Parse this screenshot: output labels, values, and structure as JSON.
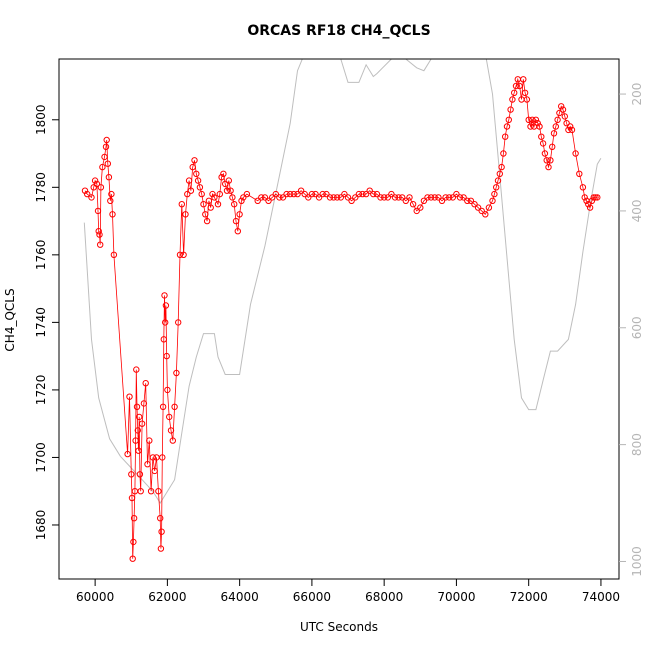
{
  "chart_data": {
    "type": "scatter",
    "title": "ORCAS RF18 CH4_QCLS",
    "xlabel": "UTC Seconds",
    "ylabel": "CH4_QCLS",
    "xlim": [
      59000,
      74500
    ],
    "ylim": [
      1664,
      1818
    ],
    "x_ticks": [
      60000,
      62000,
      64000,
      66000,
      68000,
      70000,
      72000,
      74000
    ],
    "y_ticks": [
      1680,
      1700,
      1720,
      1740,
      1760,
      1780,
      1800
    ],
    "y2_ticks": [
      200,
      400,
      600,
      800,
      1000
    ],
    "y2lim": [
      1030,
      140
    ],
    "grid": false,
    "legend": "none",
    "colors": {
      "ch4": "#ff0000",
      "pressure": "#bebebe",
      "axes": "#000000",
      "y2_ticks": "#b5b5b5"
    },
    "series": [
      {
        "role": "primary",
        "marker": "open-circle",
        "points": [
          [
            59720,
            1779
          ],
          [
            59780,
            1778
          ],
          [
            59900,
            1777
          ],
          [
            59960,
            1780
          ],
          [
            60000,
            1782
          ],
          [
            60050,
            1781
          ],
          [
            60080,
            1773
          ],
          [
            60100,
            1767
          ],
          [
            60120,
            1766
          ],
          [
            60140,
            1763
          ],
          [
            60160,
            1780
          ],
          [
            60200,
            1786
          ],
          [
            60260,
            1789
          ],
          [
            60300,
            1792
          ],
          [
            60320,
            1794
          ],
          [
            60350,
            1787
          ],
          [
            60380,
            1783
          ],
          [
            60420,
            1776
          ],
          [
            60450,
            1778
          ],
          [
            60480,
            1772
          ],
          [
            60520,
            1760
          ],
          [
            60900,
            1701
          ],
          [
            60950,
            1718
          ],
          [
            61000,
            1695
          ],
          [
            61020,
            1688
          ],
          [
            61040,
            1670
          ],
          [
            61060,
            1675
          ],
          [
            61080,
            1682
          ],
          [
            61100,
            1690
          ],
          [
            61120,
            1705
          ],
          [
            61140,
            1726
          ],
          [
            61160,
            1715
          ],
          [
            61180,
            1708
          ],
          [
            61200,
            1702
          ],
          [
            61220,
            1712
          ],
          [
            61240,
            1695
          ],
          [
            61260,
            1690
          ],
          [
            61300,
            1710
          ],
          [
            61350,
            1716
          ],
          [
            61400,
            1722
          ],
          [
            61450,
            1698
          ],
          [
            61500,
            1705
          ],
          [
            61550,
            1690
          ],
          [
            61600,
            1700
          ],
          [
            61650,
            1696
          ],
          [
            61700,
            1700
          ],
          [
            61750,
            1690
          ],
          [
            61800,
            1682
          ],
          [
            61820,
            1673
          ],
          [
            61840,
            1678
          ],
          [
            61860,
            1700
          ],
          [
            61880,
            1715
          ],
          [
            61900,
            1735
          ],
          [
            61920,
            1748
          ],
          [
            61940,
            1740
          ],
          [
            61960,
            1745
          ],
          [
            61980,
            1730
          ],
          [
            62000,
            1720
          ],
          [
            62050,
            1712
          ],
          [
            62100,
            1708
          ],
          [
            62150,
            1705
          ],
          [
            62200,
            1715
          ],
          [
            62250,
            1725
          ],
          [
            62300,
            1740
          ],
          [
            62350,
            1760
          ],
          [
            62400,
            1775
          ],
          [
            62450,
            1760
          ],
          [
            62500,
            1772
          ],
          [
            62550,
            1778
          ],
          [
            62600,
            1782
          ],
          [
            62650,
            1779
          ],
          [
            62700,
            1786
          ],
          [
            62750,
            1788
          ],
          [
            62800,
            1784
          ],
          [
            62850,
            1782
          ],
          [
            62900,
            1780
          ],
          [
            62950,
            1778
          ],
          [
            63000,
            1775
          ],
          [
            63050,
            1772
          ],
          [
            63100,
            1770
          ],
          [
            63150,
            1776
          ],
          [
            63200,
            1774
          ],
          [
            63250,
            1778
          ],
          [
            63300,
            1777
          ],
          [
            63400,
            1775
          ],
          [
            63450,
            1778
          ],
          [
            63500,
            1783
          ],
          [
            63550,
            1784
          ],
          [
            63600,
            1781
          ],
          [
            63650,
            1779
          ],
          [
            63700,
            1782
          ],
          [
            63750,
            1779
          ],
          [
            63800,
            1777
          ],
          [
            63850,
            1775
          ],
          [
            63900,
            1770
          ],
          [
            63950,
            1767
          ],
          [
            64000,
            1772
          ],
          [
            64050,
            1776
          ],
          [
            64100,
            1777
          ],
          [
            64200,
            1778
          ],
          [
            64500,
            1776
          ],
          [
            64600,
            1777
          ],
          [
            64700,
            1777
          ],
          [
            64800,
            1776
          ],
          [
            64900,
            1777
          ],
          [
            65000,
            1778
          ],
          [
            65100,
            1777
          ],
          [
            65200,
            1777
          ],
          [
            65300,
            1778
          ],
          [
            65400,
            1778
          ],
          [
            65500,
            1778
          ],
          [
            65600,
            1778
          ],
          [
            65700,
            1779
          ],
          [
            65800,
            1778
          ],
          [
            65900,
            1777
          ],
          [
            66000,
            1778
          ],
          [
            66100,
            1778
          ],
          [
            66200,
            1777
          ],
          [
            66300,
            1778
          ],
          [
            66400,
            1778
          ],
          [
            66500,
            1777
          ],
          [
            66600,
            1777
          ],
          [
            66700,
            1777
          ],
          [
            66800,
            1777
          ],
          [
            66900,
            1778
          ],
          [
            67000,
            1777
          ],
          [
            67100,
            1776
          ],
          [
            67200,
            1777
          ],
          [
            67300,
            1778
          ],
          [
            67400,
            1778
          ],
          [
            67500,
            1778
          ],
          [
            67600,
            1779
          ],
          [
            67700,
            1778
          ],
          [
            67800,
            1778
          ],
          [
            67900,
            1777
          ],
          [
            68000,
            1777
          ],
          [
            68100,
            1777
          ],
          [
            68200,
            1778
          ],
          [
            68300,
            1777
          ],
          [
            68400,
            1777
          ],
          [
            68500,
            1777
          ],
          [
            68600,
            1776
          ],
          [
            68700,
            1777
          ],
          [
            68800,
            1775
          ],
          [
            68900,
            1773
          ],
          [
            69000,
            1774
          ],
          [
            69100,
            1776
          ],
          [
            69200,
            1777
          ],
          [
            69300,
            1777
          ],
          [
            69400,
            1777
          ],
          [
            69500,
            1777
          ],
          [
            69600,
            1776
          ],
          [
            69700,
            1777
          ],
          [
            69800,
            1777
          ],
          [
            69900,
            1777
          ],
          [
            70000,
            1778
          ],
          [
            70100,
            1777
          ],
          [
            70200,
            1777
          ],
          [
            70300,
            1776
          ],
          [
            70400,
            1776
          ],
          [
            70500,
            1775
          ],
          [
            70600,
            1774
          ],
          [
            70700,
            1773
          ],
          [
            70800,
            1772
          ],
          [
            70900,
            1774
          ],
          [
            71000,
            1776
          ],
          [
            71050,
            1778
          ],
          [
            71100,
            1780
          ],
          [
            71150,
            1782
          ],
          [
            71200,
            1784
          ],
          [
            71250,
            1786
          ],
          [
            71300,
            1790
          ],
          [
            71350,
            1795
          ],
          [
            71400,
            1798
          ],
          [
            71450,
            1800
          ],
          [
            71500,
            1803
          ],
          [
            71550,
            1806
          ],
          [
            71600,
            1808
          ],
          [
            71650,
            1810
          ],
          [
            71700,
            1812
          ],
          [
            71750,
            1810
          ],
          [
            71800,
            1806
          ],
          [
            71850,
            1812
          ],
          [
            71900,
            1808
          ],
          [
            71950,
            1806
          ],
          [
            72000,
            1800
          ],
          [
            72050,
            1798
          ],
          [
            72100,
            1800
          ],
          [
            72150,
            1798
          ],
          [
            72200,
            1800
          ],
          [
            72250,
            1799
          ],
          [
            72300,
            1798
          ],
          [
            72350,
            1795
          ],
          [
            72400,
            1793
          ],
          [
            72450,
            1790
          ],
          [
            72500,
            1788
          ],
          [
            72550,
            1786
          ],
          [
            72600,
            1788
          ],
          [
            72650,
            1792
          ],
          [
            72700,
            1796
          ],
          [
            72750,
            1798
          ],
          [
            72800,
            1800
          ],
          [
            72850,
            1802
          ],
          [
            72900,
            1804
          ],
          [
            72950,
            1803
          ],
          [
            73000,
            1801
          ],
          [
            73050,
            1799
          ],
          [
            73100,
            1797
          ],
          [
            73150,
            1798
          ],
          [
            73200,
            1797
          ],
          [
            73300,
            1790
          ],
          [
            73400,
            1784
          ],
          [
            73500,
            1780
          ],
          [
            73550,
            1777
          ],
          [
            73600,
            1776
          ],
          [
            73650,
            1775
          ],
          [
            73700,
            1774
          ],
          [
            73750,
            1776
          ],
          [
            73800,
            1777
          ],
          [
            73850,
            1777
          ],
          [
            73900,
            1777
          ]
        ]
      },
      {
        "role": "secondary (right axis)",
        "marker": "line",
        "points": [
          [
            59700,
            420
          ],
          [
            59900,
            620
          ],
          [
            60100,
            720
          ],
          [
            60400,
            790
          ],
          [
            60700,
            820
          ],
          [
            61000,
            840
          ],
          [
            61300,
            860
          ],
          [
            61600,
            880
          ],
          [
            61800,
            900
          ],
          [
            62000,
            880
          ],
          [
            62200,
            860
          ],
          [
            62400,
            780
          ],
          [
            62600,
            700
          ],
          [
            62800,
            650
          ],
          [
            63000,
            610
          ],
          [
            63300,
            610
          ],
          [
            63400,
            650
          ],
          [
            63600,
            680
          ],
          [
            64000,
            680
          ],
          [
            64300,
            560
          ],
          [
            64700,
            460
          ],
          [
            65100,
            340
          ],
          [
            65400,
            250
          ],
          [
            65600,
            160
          ],
          [
            65800,
            130
          ],
          [
            66100,
            130
          ],
          [
            66500,
            130
          ],
          [
            66800,
            140
          ],
          [
            67000,
            180
          ],
          [
            67300,
            180
          ],
          [
            67500,
            150
          ],
          [
            67700,
            170
          ],
          [
            67800,
            165
          ],
          [
            68200,
            140
          ],
          [
            68600,
            140
          ],
          [
            68900,
            155
          ],
          [
            69100,
            160
          ],
          [
            69400,
            130
          ],
          [
            69800,
            130
          ],
          [
            70400,
            130
          ],
          [
            70800,
            130
          ],
          [
            71000,
            200
          ],
          [
            71200,
            340
          ],
          [
            71400,
            480
          ],
          [
            71600,
            620
          ],
          [
            71800,
            720
          ],
          [
            72000,
            740
          ],
          [
            72200,
            740
          ],
          [
            72400,
            690
          ],
          [
            72600,
            640
          ],
          [
            72800,
            640
          ],
          [
            73100,
            620
          ],
          [
            73300,
            560
          ],
          [
            73500,
            470
          ],
          [
            73700,
            390
          ],
          [
            73900,
            320
          ],
          [
            74000,
            310
          ]
        ]
      }
    ]
  }
}
